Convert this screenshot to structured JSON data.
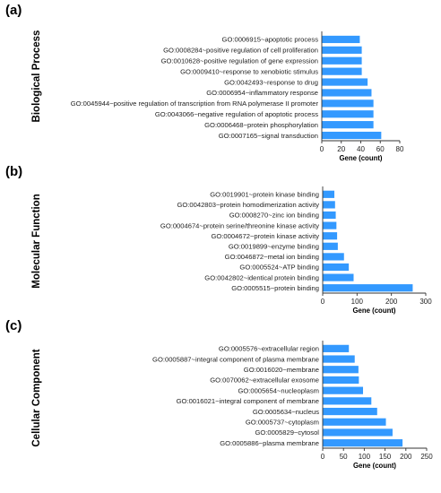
{
  "chart_data": [
    {
      "type": "bar",
      "orientation": "horizontal",
      "panel_label": "(a)",
      "side_label": "Biological Process",
      "xlabel": "Gene (count)",
      "xlim": [
        0,
        80
      ],
      "xticks": [
        "0",
        "20",
        "40",
        "60",
        "80"
      ],
      "bar_color": "#3399ff",
      "categories": [
        "GO:0006915~apoptotic process",
        "GO:0008284~positive regulation of cell proliferation",
        "GO:0010628~positive regulation of gene expression",
        "GO:0009410~response to xenobiotic stimulus",
        "GO:0042493~response to drug",
        "GO:0006954~inflammatory response",
        "GO:0045944~positive regulation of transcription from RNA polymerase II promoter",
        "GO:0043066~negative regulation of apoptotic process",
        "GO:0006468~protein phosphorylation",
        "GO:0007165~signal transduction"
      ],
      "values": [
        39,
        41,
        41,
        41,
        47,
        51,
        53,
        53,
        53,
        61
      ]
    },
    {
      "type": "bar",
      "orientation": "horizontal",
      "panel_label": "(b)",
      "side_label": "Molecular Function",
      "xlabel": "Gene (count)",
      "xlim": [
        0,
        300
      ],
      "xticks": [
        "0",
        "100",
        "200",
        "300"
      ],
      "bar_color": "#3399ff",
      "categories": [
        "GO:0019901~protein kinase binding",
        "GO:0042803~protein homodimerization activity",
        "GO:0008270~zinc ion binding",
        "GO:0004674~protein serine/threonine kinase activity",
        "GO:0004672~protein kinase activity",
        "GO:0019899~enzyme binding",
        "GO:0046872~metal ion binding",
        "GO:0005524~ATP binding",
        "GO:0042802~identical protein binding",
        "GO:0005515~protein binding"
      ],
      "values": [
        34,
        36,
        38,
        40,
        42,
        44,
        62,
        76,
        90,
        262
      ]
    },
    {
      "type": "bar",
      "orientation": "horizontal",
      "panel_label": "(c)",
      "side_label": "Cellular Component",
      "xlabel": "Gene (count)",
      "xlim": [
        0,
        250
      ],
      "xticks": [
        "0",
        "50",
        "100",
        "150",
        "200",
        "250"
      ],
      "bar_color": "#3399ff",
      "categories": [
        "GO:0005576~extracellular region",
        "GO:0005887~integral component of plasma membrane",
        "GO:0016020~membrane",
        "GO:0070062~extracellular exosome",
        "GO:0005654~nucleoplasm",
        "GO:0016021~integral component of membrane",
        "GO:0005634~nucleus",
        "GO:0005737~cytoplasm",
        "GO:0005829~cytosol",
        "GO:0005886~plasma membrane"
      ],
      "values": [
        63,
        77,
        86,
        87,
        97,
        117,
        131,
        152,
        168,
        192
      ]
    }
  ]
}
